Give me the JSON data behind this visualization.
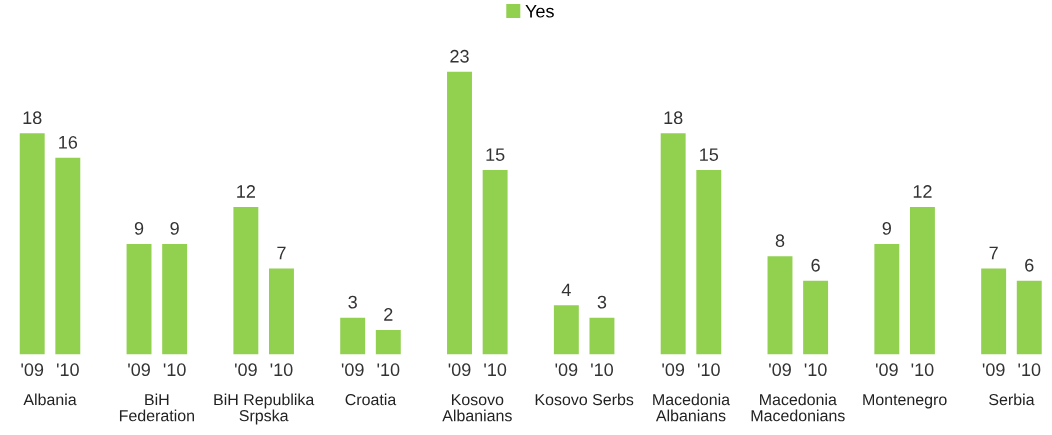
{
  "chart_data": {
    "type": "bar",
    "categories": [
      "'09",
      "'10",
      "'09",
      "'10",
      "'09",
      "'10",
      "'09",
      "'10",
      "'09",
      "'10",
      "'09",
      "'10",
      "'09",
      "'10",
      "'09",
      "'10",
      "'09",
      "'10",
      "'09",
      "'10"
    ],
    "series": [
      {
        "name": "Yes",
        "color": "#92d050",
        "values": [
          18,
          16,
          9,
          9,
          12,
          7,
          3,
          2,
          23,
          15,
          4,
          3,
          18,
          15,
          8,
          6,
          9,
          12,
          7,
          6
        ]
      }
    ],
    "data_labels": true,
    "legend": "top",
    "annotations": [
      "Albania",
      "BiH\nFederation",
      "BiH Republika\nSrpska",
      "Croatia",
      "Kosovo\nAlbanians",
      "Kosovo Serbs",
      "Macedonia\nAlbanians",
      "Macedonia\nMacedonians",
      "Montenegro",
      "Serbia"
    ]
  }
}
